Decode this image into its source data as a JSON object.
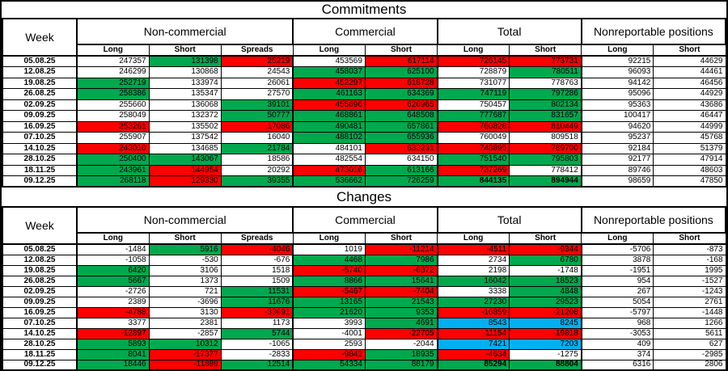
{
  "colors": {
    "green": "#00A84E",
    "red": "#FF0000",
    "blue": "#00B0F0"
  },
  "tables": [
    {
      "title": "Commitments",
      "week_label": "Week",
      "groups": [
        "Non-commercial",
        "Commercial",
        "Total",
        "Nonreportable positions"
      ],
      "subheaders": [
        "Long",
        "Short",
        "Spreads",
        "Long",
        "Short",
        "Long",
        "Short",
        "Long",
        "Short"
      ],
      "rows": [
        {
          "week": "05.08.25",
          "cells": [
            [
              "247357",
              "w"
            ],
            [
              "131398",
              "g"
            ],
            [
              "25219",
              "r"
            ],
            [
              "453569",
              "w"
            ],
            [
              "617114",
              "r"
            ],
            [
              "726145",
              "r"
            ],
            [
              "773731",
              "r"
            ],
            [
              "92215",
              "w"
            ],
            [
              "44629",
              "w"
            ]
          ]
        },
        {
          "week": "12.08.25",
          "cells": [
            [
              "246299",
              "w"
            ],
            [
              "130868",
              "w"
            ],
            [
              "24543",
              "w"
            ],
            [
              "458037",
              "g"
            ],
            [
              "625100",
              "g"
            ],
            [
              "728879",
              "w"
            ],
            [
              "780511",
              "g"
            ],
            [
              "96093",
              "w"
            ],
            [
              "44461",
              "w"
            ]
          ]
        },
        {
          "week": "19.08.25",
          "cells": [
            [
              "252719",
              "g"
            ],
            [
              "133974",
              "w"
            ],
            [
              "26061",
              "w"
            ],
            [
              "452297",
              "r"
            ],
            [
              "618728",
              "r"
            ],
            [
              "731077",
              "w"
            ],
            [
              "778763",
              "w"
            ],
            [
              "94142",
              "w"
            ],
            [
              "46456",
              "w"
            ]
          ]
        },
        {
          "week": "26.08.25",
          "cells": [
            [
              "258386",
              "g"
            ],
            [
              "135347",
              "w"
            ],
            [
              "27570",
              "w"
            ],
            [
              "461163",
              "g"
            ],
            [
              "634369",
              "g"
            ],
            [
              "747119",
              "g"
            ],
            [
              "797286",
              "g"
            ],
            [
              "95096",
              "w"
            ],
            [
              "44929",
              "w"
            ]
          ]
        },
        {
          "week": "02.09.25",
          "cells": [
            [
              "255660",
              "w"
            ],
            [
              "136068",
              "w"
            ],
            [
              "39101",
              "g"
            ],
            [
              "455696",
              "r"
            ],
            [
              "626965",
              "r"
            ],
            [
              "750457",
              "w"
            ],
            [
              "802134",
              "g"
            ],
            [
              "95363",
              "w"
            ],
            [
              "43686",
              "w"
            ]
          ]
        },
        {
          "week": "09.09.25",
          "cells": [
            [
              "258049",
              "w"
            ],
            [
              "132372",
              "w"
            ],
            [
              "50777",
              "g"
            ],
            [
              "468861",
              "g"
            ],
            [
              "648508",
              "g"
            ],
            [
              "777687",
              "g"
            ],
            [
              "831657",
              "g"
            ],
            [
              "100417",
              "w"
            ],
            [
              "46447",
              "w"
            ]
          ]
        },
        {
          "week": "16.09.25",
          "cells": [
            [
              "253261",
              "r"
            ],
            [
              "135502",
              "w"
            ],
            [
              "17086",
              "r"
            ],
            [
              "490481",
              "g"
            ],
            [
              "657861",
              "g"
            ],
            [
              "760828",
              "r"
            ],
            [
              "810449",
              "r"
            ],
            [
              "94620",
              "w"
            ],
            [
              "44999",
              "w"
            ]
          ]
        },
        {
          "week": "07.10.25",
          "cells": [
            [
              "255907",
              "w"
            ],
            [
              "137542",
              "w"
            ],
            [
              "16040",
              "w"
            ],
            [
              "488102",
              "g"
            ],
            [
              "655936",
              "g"
            ],
            [
              "760049",
              "w"
            ],
            [
              "809518",
              "w"
            ],
            [
              "95237",
              "w"
            ],
            [
              "45768",
              "w"
            ]
          ]
        },
        {
          "week": "14.10.25",
          "cells": [
            [
              "243010",
              "r"
            ],
            [
              "134685",
              "w"
            ],
            [
              "21784",
              "g"
            ],
            [
              "484101",
              "w"
            ],
            [
              "633231",
              "r"
            ],
            [
              "748895",
              "r"
            ],
            [
              "789700",
              "r"
            ],
            [
              "92184",
              "w"
            ],
            [
              "51379",
              "w"
            ]
          ]
        },
        {
          "week": "28.10.25",
          "cells": [
            [
              "250400",
              "g"
            ],
            [
              "143067",
              "g"
            ],
            [
              "18586",
              "w"
            ],
            [
              "482554",
              "w"
            ],
            [
              "634150",
              "w"
            ],
            [
              "751540",
              "g"
            ],
            [
              "795803",
              "g"
            ],
            [
              "92177",
              "w"
            ],
            [
              "47914",
              "w"
            ]
          ]
        },
        {
          "week": "18.11.25",
          "cells": [
            [
              "243961",
              "g"
            ],
            [
              "144954",
              "r"
            ],
            [
              "20292",
              "w"
            ],
            [
              "473016",
              "r"
            ],
            [
              "613166",
              "g"
            ],
            [
              "737269",
              "r"
            ],
            [
              "778412",
              "w"
            ],
            [
              "89746",
              "w"
            ],
            [
              "48603",
              "w"
            ]
          ]
        },
        {
          "week": "09.12.25",
          "cells": [
            [
              "268118",
              "g"
            ],
            [
              "129330",
              "r"
            ],
            [
              "39355",
              "g"
            ],
            [
              "536662",
              "g"
            ],
            [
              "726259",
              "g"
            ],
            [
              "844135",
              "gb"
            ],
            [
              "894944",
              "gb"
            ],
            [
              "98659",
              "w"
            ],
            [
              "47850",
              "w"
            ]
          ]
        }
      ]
    },
    {
      "title": "Changes",
      "week_label": "Week",
      "groups": [
        "Non-commercial",
        "Commercial",
        "Total",
        "Nonreportable positions"
      ],
      "subheaders": [
        "Long",
        "Short",
        "Spreads",
        "Long",
        "Short",
        "Long",
        "Short",
        "Long",
        "Short"
      ],
      "rows": [
        {
          "week": "05.08.25",
          "cells": [
            [
              "-1484",
              "w"
            ],
            [
              "5916",
              "g"
            ],
            [
              "-4046",
              "r"
            ],
            [
              "1019",
              "w"
            ],
            [
              "-11214",
              "r"
            ],
            [
              "-4511",
              "r"
            ],
            [
              "-9344",
              "r"
            ],
            [
              "-5706",
              "w"
            ],
            [
              "-873",
              "w"
            ]
          ]
        },
        {
          "week": "12.08.25",
          "cells": [
            [
              "-1058",
              "w"
            ],
            [
              "-530",
              "w"
            ],
            [
              "-676",
              "w"
            ],
            [
              "4468",
              "g"
            ],
            [
              "7986",
              "g"
            ],
            [
              "2734",
              "w"
            ],
            [
              "6780",
              "g"
            ],
            [
              "3878",
              "w"
            ],
            [
              "-168",
              "w"
            ]
          ]
        },
        {
          "week": "19.08.25",
          "cells": [
            [
              "6420",
              "g"
            ],
            [
              "3106",
              "w"
            ],
            [
              "1518",
              "w"
            ],
            [
              "-5740",
              "r"
            ],
            [
              "-6372",
              "r"
            ],
            [
              "2198",
              "w"
            ],
            [
              "-1748",
              "w"
            ],
            [
              "-1951",
              "w"
            ],
            [
              "1995",
              "w"
            ]
          ]
        },
        {
          "week": "26.08.25",
          "cells": [
            [
              "5667",
              "g"
            ],
            [
              "1373",
              "w"
            ],
            [
              "1509",
              "w"
            ],
            [
              "8866",
              "g"
            ],
            [
              "15641",
              "g"
            ],
            [
              "16042",
              "g"
            ],
            [
              "18523",
              "g"
            ],
            [
              "954",
              "w"
            ],
            [
              "-1527",
              "w"
            ]
          ]
        },
        {
          "week": "02.09.25",
          "cells": [
            [
              "-2726",
              "w"
            ],
            [
              "721",
              "w"
            ],
            [
              "11531",
              "g"
            ],
            [
              "-5467",
              "r"
            ],
            [
              "-7404",
              "r"
            ],
            [
              "3338",
              "w"
            ],
            [
              "4848",
              "g"
            ],
            [
              "267",
              "w"
            ],
            [
              "-1243",
              "w"
            ]
          ]
        },
        {
          "week": "09.09.25",
          "cells": [
            [
              "2389",
              "w"
            ],
            [
              "-3696",
              "w"
            ],
            [
              "11676",
              "g"
            ],
            [
              "13165",
              "g"
            ],
            [
              "21543",
              "g"
            ],
            [
              "27230",
              "g"
            ],
            [
              "29523",
              "g"
            ],
            [
              "5054",
              "w"
            ],
            [
              "2761",
              "w"
            ]
          ]
        },
        {
          "week": "16.09.25",
          "cells": [
            [
              "-4788",
              "r"
            ],
            [
              "3130",
              "w"
            ],
            [
              "-33691",
              "r"
            ],
            [
              "21620",
              "g"
            ],
            [
              "9353",
              "g"
            ],
            [
              "-16859",
              "r"
            ],
            [
              "-21208",
              "r"
            ],
            [
              "-5797",
              "w"
            ],
            [
              "-1448",
              "w"
            ]
          ]
        },
        {
          "week": "07.10.25",
          "cells": [
            [
              "3377",
              "w"
            ],
            [
              "2381",
              "w"
            ],
            [
              "1173",
              "w"
            ],
            [
              "3993",
              "w"
            ],
            [
              "4691",
              "g"
            ],
            [
              "8543",
              "b"
            ],
            [
              "8245",
              "b"
            ],
            [
              "968",
              "w"
            ],
            [
              "1266",
              "w"
            ]
          ]
        },
        {
          "week": "14.10.25",
          "cells": [
            [
              "-12897",
              "r"
            ],
            [
              "-2857",
              "w"
            ],
            [
              "5744",
              "g"
            ],
            [
              "-4001",
              "w"
            ],
            [
              "-22705",
              "r"
            ],
            [
              "-11154",
              "r"
            ],
            [
              "-19818",
              "r"
            ],
            [
              "-3053",
              "w"
            ],
            [
              "5611",
              "w"
            ]
          ]
        },
        {
          "week": "28.10.25",
          "cells": [
            [
              "5893",
              "g"
            ],
            [
              "10312",
              "g"
            ],
            [
              "-1065",
              "w"
            ],
            [
              "2593",
              "w"
            ],
            [
              "-2044",
              "w"
            ],
            [
              "7421",
              "b"
            ],
            [
              "7203",
              "b"
            ],
            [
              "409",
              "w"
            ],
            [
              "627",
              "w"
            ]
          ]
        },
        {
          "week": "18.11.25",
          "cells": [
            [
              "8041",
              "g"
            ],
            [
              "-17377",
              "r"
            ],
            [
              "-2833",
              "w"
            ],
            [
              "-9842",
              "r"
            ],
            [
              "18935",
              "g"
            ],
            [
              "-4634",
              "r"
            ],
            [
              "-1275",
              "w"
            ],
            [
              "374",
              "w"
            ],
            [
              "-2985",
              "w"
            ]
          ]
        },
        {
          "week": "09.12.25",
          "cells": [
            [
              "18446",
              "g"
            ],
            [
              "-11889",
              "r"
            ],
            [
              "12514",
              "g"
            ],
            [
              "54334",
              "g"
            ],
            [
              "88179",
              "g"
            ],
            [
              "85294",
              "gb"
            ],
            [
              "88804",
              "gb"
            ],
            [
              "6316",
              "w"
            ],
            [
              "2806",
              "w"
            ]
          ]
        }
      ]
    }
  ]
}
